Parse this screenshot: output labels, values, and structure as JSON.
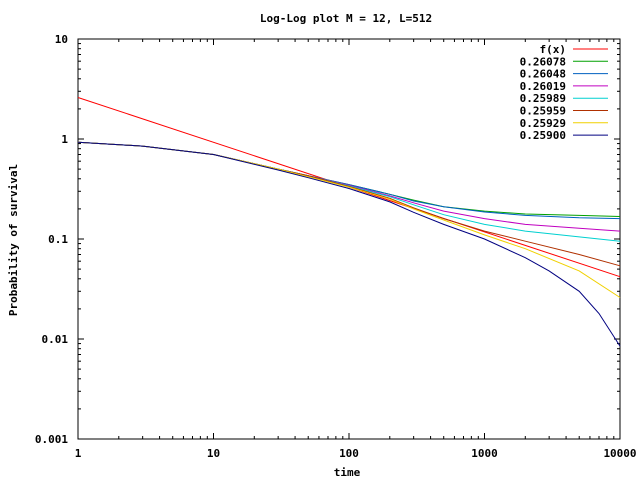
{
  "chart_data": {
    "type": "line",
    "title": "Log-Log plot M = 12, L=512",
    "xlabel": "time",
    "ylabel": "Probability of survival",
    "xscale": "log",
    "yscale": "log",
    "xlim": [
      1,
      10000
    ],
    "ylim": [
      0.001,
      10
    ],
    "xticks": [
      {
        "value": 1,
        "label": "1"
      },
      {
        "value": 10,
        "label": "10"
      },
      {
        "value": 100,
        "label": "100"
      },
      {
        "value": 1000,
        "label": "1000"
      },
      {
        "value": 10000,
        "label": "10000"
      }
    ],
    "yticks": [
      {
        "value": 0.001,
        "label": "0.001"
      },
      {
        "value": 0.01,
        "label": "0.01"
      },
      {
        "value": 0.1,
        "label": "0.1"
      },
      {
        "value": 1,
        "label": "1"
      },
      {
        "value": 10,
        "label": "10"
      }
    ],
    "grid": false,
    "legend_position": "top-right",
    "series": [
      {
        "name": "f(x)",
        "color": "#ff0000",
        "x": [
          1,
          10000
        ],
        "y": [
          2.6,
          0.042
        ]
      },
      {
        "name": "0.26078",
        "color": "#00a000",
        "x": [
          1,
          3,
          10,
          30,
          50,
          100,
          200,
          300,
          500,
          1000,
          2000,
          5000,
          10000
        ],
        "y": [
          0.93,
          0.85,
          0.7,
          0.5,
          0.43,
          0.35,
          0.28,
          0.245,
          0.21,
          0.19,
          0.178,
          0.172,
          0.168
        ]
      },
      {
        "name": "0.26048",
        "color": "#0060c0",
        "x": [
          1,
          3,
          10,
          30,
          50,
          100,
          200,
          300,
          500,
          1000,
          2000,
          5000,
          10000
        ],
        "y": [
          0.93,
          0.85,
          0.7,
          0.5,
          0.43,
          0.35,
          0.28,
          0.24,
          0.21,
          0.186,
          0.172,
          0.163,
          0.16
        ]
      },
      {
        "name": "0.26019",
        "color": "#c000c0",
        "x": [
          1,
          3,
          10,
          30,
          50,
          100,
          200,
          300,
          500,
          1000,
          2000,
          5000,
          10000
        ],
        "y": [
          0.93,
          0.85,
          0.7,
          0.5,
          0.43,
          0.345,
          0.27,
          0.23,
          0.19,
          0.16,
          0.14,
          0.128,
          0.12
        ]
      },
      {
        "name": "0.25989",
        "color": "#00d0d0",
        "x": [
          1,
          3,
          10,
          30,
          50,
          100,
          200,
          300,
          500,
          1000,
          2000,
          5000,
          10000
        ],
        "y": [
          0.93,
          0.85,
          0.7,
          0.5,
          0.43,
          0.34,
          0.265,
          0.22,
          0.175,
          0.14,
          0.12,
          0.105,
          0.095
        ]
      },
      {
        "name": "0.25959",
        "color": "#b03000",
        "x": [
          1,
          3,
          10,
          30,
          50,
          100,
          200,
          300,
          500,
          1000,
          2000,
          5000,
          10000
        ],
        "y": [
          0.93,
          0.85,
          0.7,
          0.5,
          0.43,
          0.335,
          0.255,
          0.205,
          0.16,
          0.12,
          0.095,
          0.07,
          0.054
        ]
      },
      {
        "name": "0.25929",
        "color": "#f0d000",
        "x": [
          1,
          3,
          10,
          30,
          50,
          100,
          200,
          300,
          500,
          1000,
          2000,
          5000,
          10000
        ],
        "y": [
          0.93,
          0.85,
          0.7,
          0.5,
          0.42,
          0.33,
          0.25,
          0.2,
          0.155,
          0.11,
          0.08,
          0.048,
          0.026
        ]
      },
      {
        "name": "0.25900",
        "color": "#000080",
        "x": [
          1,
          3,
          10,
          30,
          50,
          100,
          200,
          300,
          500,
          1000,
          2000,
          3000,
          5000,
          7000,
          10000
        ],
        "y": [
          0.93,
          0.85,
          0.7,
          0.49,
          0.41,
          0.32,
          0.235,
          0.185,
          0.14,
          0.1,
          0.065,
          0.048,
          0.03,
          0.018,
          0.0085
        ]
      }
    ]
  }
}
